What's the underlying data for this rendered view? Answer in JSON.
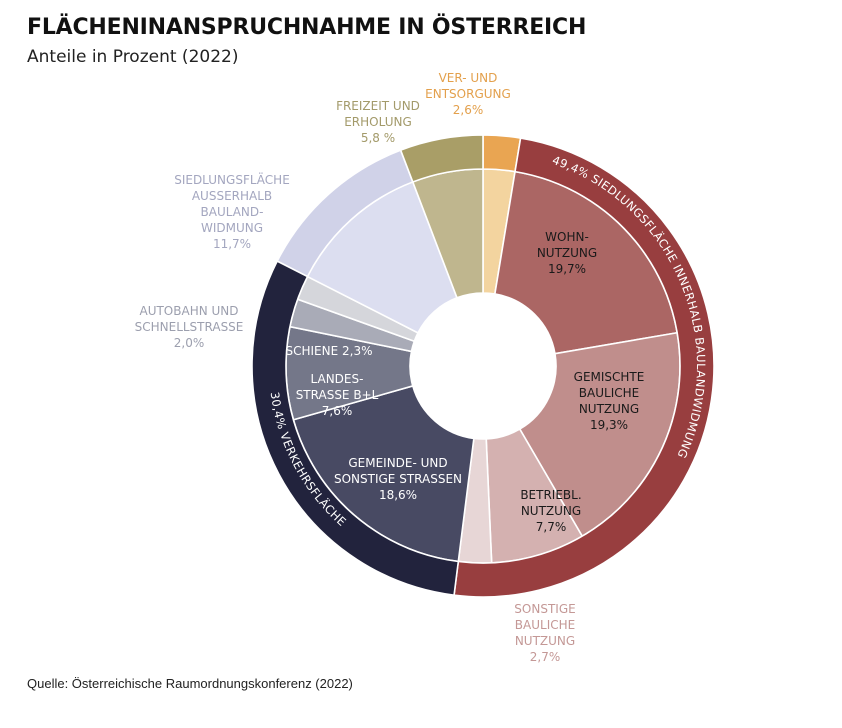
{
  "title": "FLÄCHENINANSPRUCHNAHME IN ÖSTERREICH",
  "subtitle": "Anteile in Prozent (2022)",
  "source": "Quelle: Österreichische Raumordnungskonferenz (2022)",
  "chart_data": {
    "type": "pie",
    "variant": "sunburst-donut",
    "unit": "%",
    "segments": [
      {
        "label": [
          "VER- UND",
          "ENTSORGUNG",
          "2,6%"
        ],
        "value": 2.6,
        "color": "#f3d49f",
        "outer_color": "#e9a552",
        "text_color": "#e3a04c",
        "group": null
      },
      {
        "label": [
          "WOHN-",
          "NUTZUNG",
          "19,7%"
        ],
        "value": 19.7,
        "color": "#ab6664",
        "text_color": "#1a1a1a",
        "group": "siedlung"
      },
      {
        "label": [
          "GEMISCHTE",
          "BAULICHE",
          "NUTZUNG",
          "19,3%"
        ],
        "value": 19.3,
        "color": "#c08e8c",
        "text_color": "#1a1a1a",
        "group": "siedlung"
      },
      {
        "label": [
          "BETRIEBL.",
          "NUTZUNG",
          "7,7%"
        ],
        "value": 7.7,
        "color": "#d4b1b0",
        "text_color": "#1a1a1a",
        "group": "siedlung"
      },
      {
        "label": [
          "SONSTIGE",
          "BAULICHE",
          "NUTZUNG",
          "2,7%"
        ],
        "value": 2.7,
        "color": "#e7d6d6",
        "text_color": "#c49896",
        "group": "siedlung"
      },
      {
        "label": [
          "GEMEINDE- UND",
          "SONSTIGE STRASSEN",
          "18,6%"
        ],
        "value": 18.6,
        "color": "#484a63",
        "text_color": "#ffffff",
        "group": "verkehr"
      },
      {
        "label": [
          "LANDES-",
          "STRASSE B+L",
          "7,6%"
        ],
        "value": 7.6,
        "color": "#747789",
        "text_color": "#ffffff",
        "group": "verkehr"
      },
      {
        "label": [
          "SCHIENE 2,3%"
        ],
        "value": 2.3,
        "color": "#a9abb7",
        "text_color": "#ffffff",
        "group": "verkehr"
      },
      {
        "label": [
          "AUTOBAHN UND",
          "SCHNELLSTRASSE",
          "2,0%"
        ],
        "value": 2.0,
        "color": "#d5d6db",
        "text_color": "#9c9fae",
        "group": "verkehr"
      },
      {
        "label": [
          "SIEDLUNGSFLÄCHE",
          "AUSSERHALB",
          "BAULAND-",
          "WIDMUNG",
          "11,7%"
        ],
        "value": 11.7,
        "color": "#dcdef0",
        "outer_color": "#d0d2e8",
        "text_color": "#a3a6bf",
        "group": null
      },
      {
        "label": [
          "FREIZEIT UND",
          "ERHOLUNG",
          "5,8 %"
        ],
        "value": 5.8,
        "color": "#bfb68e",
        "outer_color": "#a99e67",
        "text_color": "#a39a6a",
        "group": null
      }
    ],
    "groups": [
      {
        "id": "siedlung",
        "label": "49,4% SIEDLUNGSFLÄCHE INNERHALB BAULANDWIDMUNG",
        "value": 49.4,
        "color": "#983e3f"
      },
      {
        "id": "verkehr",
        "label": "30,4% VERKEHRSFLÄCHE",
        "value": 30.4,
        "color": "#22233d"
      }
    ]
  }
}
